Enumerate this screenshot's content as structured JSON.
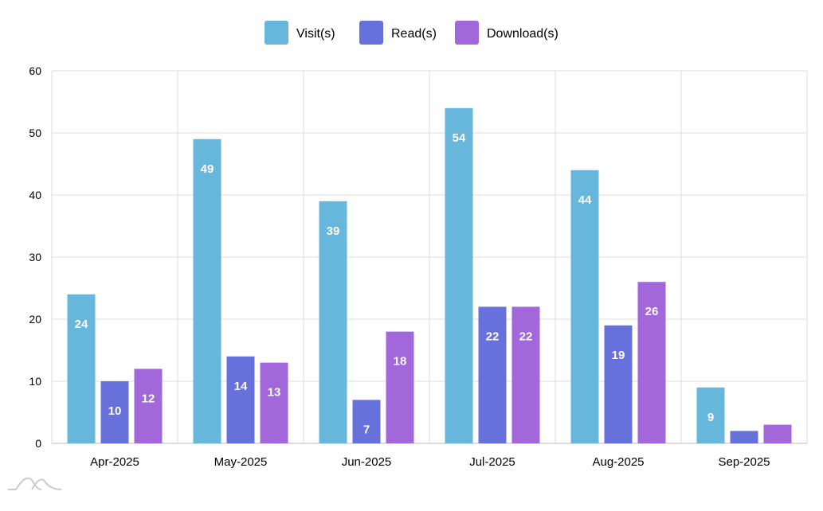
{
  "chart_data": {
    "type": "bar",
    "title": "",
    "xlabel": "",
    "ylabel": "",
    "categories": [
      "Apr-2025",
      "May-2025",
      "Jun-2025",
      "Jul-2025",
      "Aug-2025",
      "Sep-2025"
    ],
    "series": [
      {
        "name": "Visit(s)",
        "color": "#67b7dc",
        "values": [
          24,
          49,
          39,
          54,
          44,
          9
        ]
      },
      {
        "name": "Read(s)",
        "color": "#6771dc",
        "values": [
          10,
          14,
          7,
          22,
          19,
          2
        ]
      },
      {
        "name": "Download(s)",
        "color": "#a367dc",
        "values": [
          12,
          13,
          18,
          22,
          26,
          3
        ]
      }
    ],
    "ylim": [
      0,
      60
    ],
    "yticks": [
      0,
      10,
      20,
      30,
      40,
      50,
      60
    ],
    "grid": true,
    "legend": "top-center",
    "data_label_min": 5
  }
}
